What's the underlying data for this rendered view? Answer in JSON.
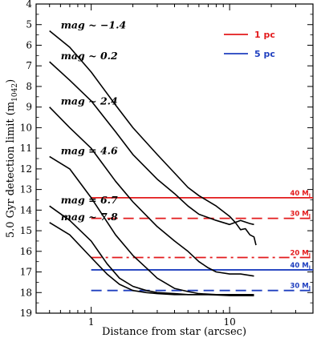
{
  "chart_data": {
    "type": "line",
    "xlabel": "Distance from star (arcsec)",
    "ylabel": "5.0 Gyr detection limit (m",
    "ylabel_sub": "1042",
    "ylabel_close": ")",
    "xscale": "log",
    "xlim": [
      0.4,
      40
    ],
    "ylim": [
      19,
      4
    ],
    "x_tick_labels": [
      "1",
      "10"
    ],
    "y_tick_labels": [
      "4",
      "5",
      "6",
      "7",
      "8",
      "9",
      "10",
      "11",
      "12",
      "13",
      "14",
      "15",
      "16",
      "17",
      "18",
      "19"
    ],
    "series": [
      {
        "name": "mag ~ −1.4",
        "x": [
          0.5,
          0.7,
          1.0,
          1.5,
          2.0,
          3.0,
          4.0,
          5.0,
          6.0,
          8.0,
          10.0,
          11.0,
          12.0,
          13.0,
          14.0,
          15.0,
          15.5
        ],
        "y": [
          5.3,
          6.1,
          7.3,
          8.9,
          10.0,
          11.3,
          12.2,
          12.9,
          13.3,
          13.8,
          14.3,
          14.6,
          14.95,
          14.9,
          15.2,
          15.3,
          15.7
        ]
      },
      {
        "name": "mag ~ 0.2",
        "x": [
          0.5,
          0.7,
          1.0,
          1.5,
          2.0,
          3.0,
          4.0,
          5.0,
          6.0,
          8.0,
          10.0,
          12.0,
          14.0,
          15.0
        ],
        "y": [
          6.8,
          7.7,
          8.7,
          10.2,
          11.3,
          12.5,
          13.2,
          13.8,
          14.2,
          14.5,
          14.7,
          14.5,
          14.65,
          14.7
        ]
      },
      {
        "name": "mag ~ 2.4",
        "x": [
          0.5,
          0.7,
          1.0,
          1.5,
          2.0,
          3.0,
          4.0,
          5.0,
          6.0,
          7.0,
          8.0,
          10.0,
          12.0,
          15.0
        ],
        "y": [
          9.0,
          10.0,
          11.0,
          12.6,
          13.6,
          14.8,
          15.5,
          16.0,
          16.5,
          16.8,
          17.0,
          17.1,
          17.1,
          17.2
        ]
      },
      {
        "name": "mag = 4.6",
        "x": [
          0.5,
          0.7,
          1.0,
          1.5,
          2.0,
          2.5,
          3.0,
          4.0,
          5.0,
          6.0,
          8.0,
          10.0,
          15.0
        ],
        "y": [
          11.4,
          12.0,
          13.4,
          15.2,
          16.2,
          16.8,
          17.3,
          17.8,
          17.95,
          18.05,
          18.1,
          18.1,
          18.15
        ]
      },
      {
        "name": "mag = 6.7",
        "x": [
          0.5,
          0.7,
          1.0,
          1.3,
          1.6,
          2.0,
          2.5,
          3.0,
          4.0,
          5.0,
          7.0,
          10.0,
          15.0
        ],
        "y": [
          13.8,
          14.5,
          15.5,
          16.6,
          17.3,
          17.7,
          17.9,
          18.0,
          18.05,
          18.1,
          18.1,
          18.1,
          18.1
        ]
      },
      {
        "name": "mag ~ 7.8",
        "x": [
          0.5,
          0.7,
          1.0,
          1.3,
          1.6,
          2.0,
          2.5,
          3.0,
          4.0,
          5.0,
          7.0,
          10.0,
          15.0
        ],
        "y": [
          14.6,
          15.2,
          16.3,
          17.1,
          17.6,
          17.9,
          18.0,
          18.05,
          18.1,
          18.1,
          18.1,
          18.15,
          18.15
        ]
      }
    ],
    "limit_lines": [
      {
        "label": "40 M",
        "sub": "J",
        "y": 13.4,
        "color": "#e31a1c",
        "dash": "solid"
      },
      {
        "label": "30 M",
        "sub": "J",
        "y": 14.4,
        "color": "#e31a1c",
        "dash": "dashed"
      },
      {
        "label": "20 M",
        "sub": "J",
        "y": 16.3,
        "color": "#e31a1c",
        "dash": "dashdot"
      },
      {
        "label": "40 M",
        "sub": "J",
        "y": 16.9,
        "color": "#1f3fbf",
        "dash": "solid"
      },
      {
        "label": "30 M",
        "sub": "J",
        "y": 17.9,
        "color": "#1f3fbf",
        "dash": "dashed"
      }
    ],
    "legend": [
      {
        "label": "1 pc",
        "color": "#e31a1c"
      },
      {
        "label": "5 pc",
        "color": "#1f3fbf"
      }
    ],
    "legend_placement": "top-right"
  }
}
